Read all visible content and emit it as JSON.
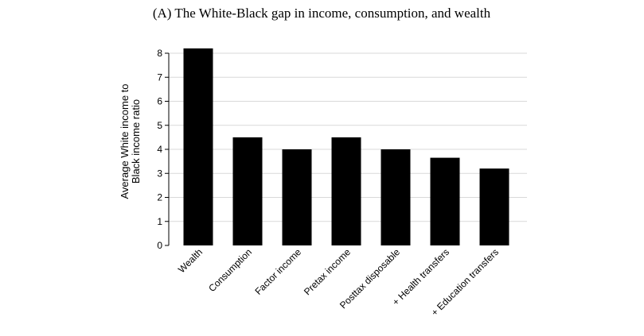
{
  "chart_data": {
    "type": "bar",
    "title": "(A) The White-Black gap in income, consumption, and wealth",
    "ylabel_lines": [
      "Average White income to",
      "Black income ratio"
    ],
    "xlabel": "",
    "categories": [
      "Wealth",
      "Consumption",
      "Factor income",
      "Pretax income",
      "Posttax disposable",
      "+ Health transfers",
      "+ Education transfers"
    ],
    "values": [
      8.2,
      4.5,
      4.0,
      4.5,
      4.0,
      3.65,
      3.2
    ],
    "ylim": [
      0,
      8
    ],
    "yticks": [
      0,
      1,
      2,
      3,
      4,
      5,
      6,
      7,
      8
    ],
    "grid": true,
    "legend": "none",
    "colors": {
      "bar": "#000000",
      "grid": "#d9d9d9",
      "axis": "#000000"
    }
  }
}
